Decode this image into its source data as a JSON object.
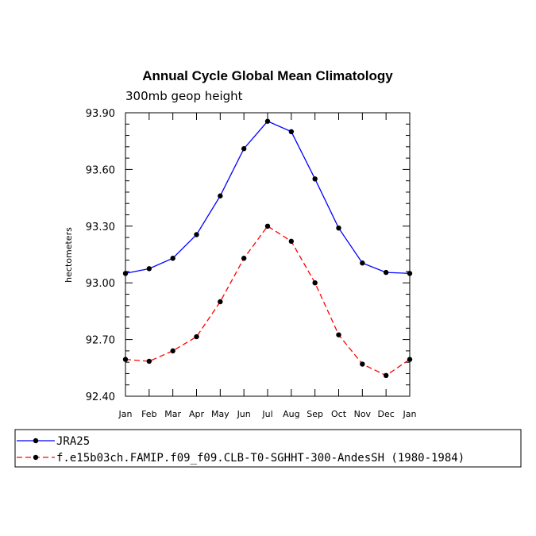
{
  "chart_data": {
    "type": "line",
    "title": "Annual Cycle Global Mean Climatology",
    "subtitle": "300mb geop height",
    "xlabel": "",
    "ylabel": "hectometers",
    "categories": [
      "Jan",
      "Feb",
      "Mar",
      "Apr",
      "May",
      "Jun",
      "Jul",
      "Aug",
      "Sep",
      "Oct",
      "Nov",
      "Dec",
      "Jan"
    ],
    "ylim": [
      92.4,
      93.9
    ],
    "yticks": [
      "92.40",
      "92.70",
      "93.00",
      "93.30",
      "93.60",
      "93.90"
    ],
    "grid": false,
    "legend_placement": "bottom",
    "series": [
      {
        "name": "JRA25",
        "color": "#0000ff",
        "dash": "solid",
        "values": [
          93.05,
          93.075,
          93.13,
          93.255,
          93.46,
          93.71,
          93.855,
          93.8,
          93.55,
          93.29,
          93.105,
          93.055,
          93.05
        ]
      },
      {
        "name": "f.e15b03ch.FAMIP.f09_f09.CLB-T0-SGHHT-300-AndesSH (1980-1984)",
        "color": "#ff0000",
        "dash": "dashed",
        "values": [
          92.595,
          92.585,
          92.64,
          92.715,
          92.9,
          93.13,
          93.3,
          93.22,
          93.0,
          92.725,
          92.57,
          92.51,
          92.595
        ]
      }
    ]
  }
}
